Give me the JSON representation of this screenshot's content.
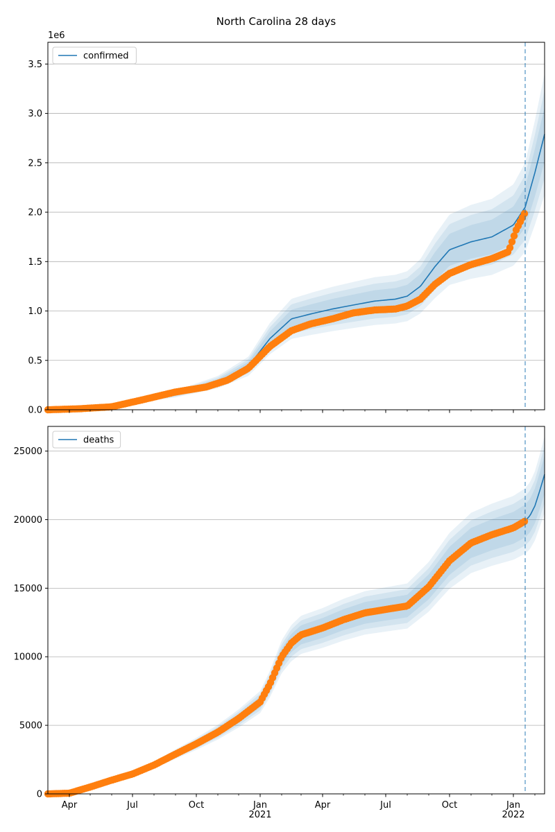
{
  "figure": {
    "title": "North Carolina 28 days"
  },
  "chart_data": [
    {
      "type": "line",
      "xlabel": "",
      "ylabel": "",
      "y_offset_label": "1e6",
      "ylim": [
        0,
        3.72
      ],
      "y_ticks": [
        0.0,
        0.5,
        1.0,
        1.5,
        2.0,
        2.5,
        3.0,
        3.5
      ],
      "y_tick_labels": [
        "0.0",
        "0.5",
        "1.0",
        "1.5",
        "2.0",
        "2.5",
        "3.0",
        "3.5"
      ],
      "xlim": [
        "2020-03-01",
        "2022-02-15"
      ],
      "x_tick_labels": [],
      "grid": "horizontal",
      "legend": {
        "position": "upper-left",
        "entries": [
          "confirmed"
        ]
      },
      "forecast_date": "2022-01-18",
      "colors": {
        "model": "#1f77b4",
        "observed": "#ff7f0e",
        "band": "#1f77b4"
      },
      "series": [
        {
          "name": "confirmed",
          "kind": "model-median",
          "x": [
            "2020-03-01",
            "2020-06-01",
            "2020-09-01",
            "2020-11-01",
            "2020-12-15",
            "2021-01-15",
            "2021-02-15",
            "2021-03-15",
            "2021-04-15",
            "2021-05-15",
            "2021-06-15",
            "2021-07-15",
            "2021-08-01",
            "2021-08-20",
            "2021-09-10",
            "2021-10-01",
            "2021-11-01",
            "2021-12-01",
            "2022-01-01",
            "2022-01-18",
            "2022-02-01",
            "2022-02-15"
          ],
          "values": [
            0.0,
            0.05,
            0.16,
            0.28,
            0.44,
            0.72,
            0.92,
            0.97,
            1.02,
            1.06,
            1.1,
            1.12,
            1.15,
            1.25,
            1.45,
            1.62,
            1.7,
            1.75,
            1.87,
            2.05,
            2.4,
            2.79
          ],
          "band_inner": [
            0.9,
            1.1
          ],
          "band_outer": [
            0.78,
            1.22
          ]
        },
        {
          "name": "",
          "kind": "observed",
          "x": [
            "2020-03-01",
            "2020-04-15",
            "2020-06-01",
            "2020-07-15",
            "2020-09-01",
            "2020-10-15",
            "2020-11-15",
            "2020-12-15",
            "2021-01-15",
            "2021-02-15",
            "2021-03-15",
            "2021-04-15",
            "2021-05-15",
            "2021-06-15",
            "2021-07-15",
            "2021-08-01",
            "2021-08-20",
            "2021-09-10",
            "2021-10-01",
            "2021-11-01",
            "2021-12-01",
            "2021-12-25",
            "2022-01-05",
            "2022-01-18"
          ],
          "values": [
            0.0,
            0.01,
            0.03,
            0.1,
            0.18,
            0.23,
            0.3,
            0.42,
            0.64,
            0.8,
            0.87,
            0.92,
            0.98,
            1.01,
            1.02,
            1.05,
            1.12,
            1.27,
            1.38,
            1.47,
            1.53,
            1.6,
            1.82,
            2.0
          ]
        }
      ]
    },
    {
      "type": "line",
      "xlabel": "",
      "ylabel": "",
      "ylim": [
        0,
        26800
      ],
      "y_ticks": [
        0,
        5000,
        10000,
        15000,
        20000,
        25000
      ],
      "y_tick_labels": [
        "0",
        "5000",
        "10000",
        "15000",
        "20000",
        "25000"
      ],
      "xlim": [
        "2020-03-01",
        "2022-02-15"
      ],
      "x_tick_labels": [
        "Apr",
        "Jul",
        "Oct",
        "Jan\n2021",
        "Apr",
        "Jul",
        "Oct",
        "Jan\n2022"
      ],
      "grid": "horizontal",
      "legend": {
        "position": "upper-left",
        "entries": [
          "deaths"
        ]
      },
      "forecast_date": "2022-01-18",
      "colors": {
        "model": "#1f77b4",
        "observed": "#ff7f0e",
        "band": "#1f77b4"
      },
      "series": [
        {
          "name": "deaths",
          "kind": "model-median",
          "x": [
            "2022-01-18",
            "2022-01-25",
            "2022-02-01",
            "2022-02-08",
            "2022-02-15"
          ],
          "values": [
            19900,
            20300,
            21000,
            22100,
            23300
          ],
          "band_inner": [
            0.94,
            1.06
          ],
          "band_outer": [
            0.88,
            1.12
          ]
        },
        {
          "name": "",
          "kind": "observed",
          "x": [
            "2020-03-01",
            "2020-04-01",
            "2020-05-01",
            "2020-06-01",
            "2020-07-01",
            "2020-08-01",
            "2020-09-01",
            "2020-10-01",
            "2020-11-01",
            "2020-12-01",
            "2021-01-01",
            "2021-01-15",
            "2021-02-01",
            "2021-02-15",
            "2021-03-01",
            "2021-04-01",
            "2021-05-01",
            "2021-06-01",
            "2021-07-01",
            "2021-08-01",
            "2021-09-01",
            "2021-10-01",
            "2021-11-01",
            "2021-12-01",
            "2022-01-01",
            "2022-01-18"
          ],
          "values": [
            0,
            50,
            500,
            1000,
            1450,
            2100,
            2900,
            3650,
            4500,
            5500,
            6700,
            8000,
            10000,
            11000,
            11600,
            12100,
            12700,
            13200,
            13450,
            13700,
            15100,
            17000,
            18300,
            18900,
            19400,
            19900
          ]
        }
      ]
    }
  ]
}
